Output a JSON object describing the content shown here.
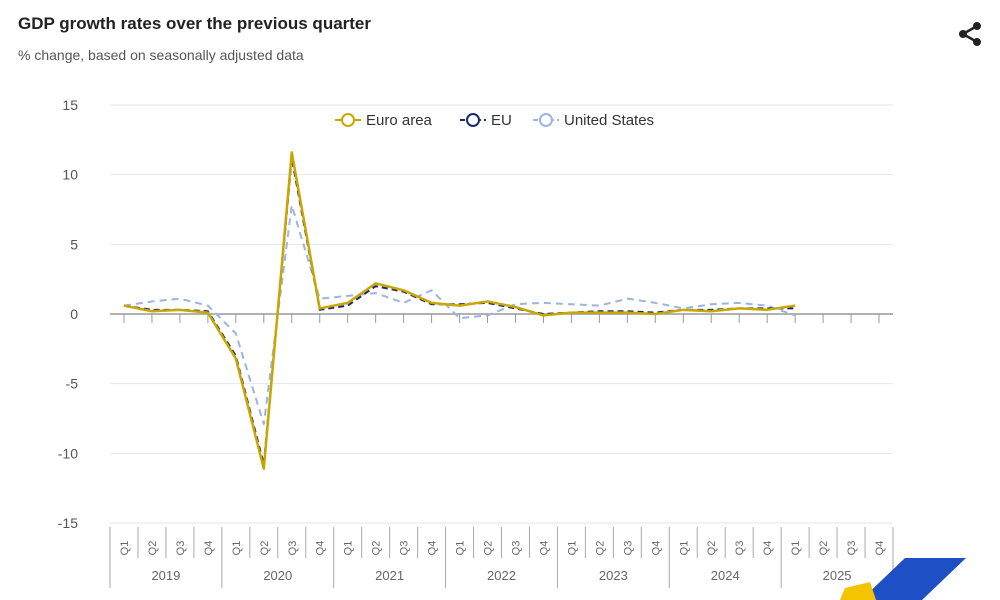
{
  "header": {
    "title": "GDP growth rates over the previous quarter",
    "subtitle": "% change, based on seasonally adjusted data",
    "share_icon": "share-icon"
  },
  "chart_data": {
    "type": "line",
    "title": "GDP growth rates over the previous quarter",
    "subtitle": "% change, based on seasonally adjusted data",
    "xlabel": "",
    "ylabel": "",
    "ylim": [
      -15,
      15
    ],
    "yticks": [
      "15",
      "10",
      "5",
      "0",
      "-5",
      "-10",
      "-15"
    ],
    "ytick_values": [
      15,
      10,
      5,
      0,
      -5,
      -10,
      -15
    ],
    "years": [
      "2019",
      "2020",
      "2021",
      "2022",
      "2023",
      "2024",
      "2025"
    ],
    "quarters": [
      "Q1",
      "Q2",
      "Q3",
      "Q4"
    ],
    "legend_position": "top",
    "grid": true,
    "series": [
      {
        "name": "Euro area",
        "color": "#c8a800",
        "dash": "none",
        "values": [
          0.6,
          0.2,
          0.3,
          0.1,
          -3.2,
          -11.1,
          11.6,
          0.4,
          0.8,
          2.2,
          1.7,
          0.8,
          0.6,
          0.9,
          0.5,
          -0.1,
          0.1,
          0.1,
          0.1,
          0.0,
          0.3,
          0.2,
          0.4,
          0.3,
          0.6
        ]
      },
      {
        "name": "EU",
        "color": "#1a2a6c",
        "dash": "6,4",
        "values": [
          0.6,
          0.3,
          0.3,
          0.2,
          -3.0,
          -10.8,
          11.2,
          0.3,
          0.6,
          2.0,
          1.6,
          0.7,
          0.7,
          0.8,
          0.4,
          0.0,
          0.1,
          0.2,
          0.2,
          0.1,
          0.3,
          0.3,
          0.4,
          0.4,
          0.4
        ]
      },
      {
        "name": "United States",
        "color": "#9db4e0",
        "dash": "7,5",
        "values": [
          0.6,
          0.9,
          1.1,
          0.6,
          -1.4,
          -7.9,
          7.8,
          1.1,
          1.3,
          1.5,
          0.8,
          1.7,
          -0.3,
          -0.1,
          0.7,
          0.8,
          0.7,
          0.6,
          1.1,
          0.8,
          0.4,
          0.7,
          0.8,
          0.6,
          -0.1
        ]
      }
    ]
  }
}
